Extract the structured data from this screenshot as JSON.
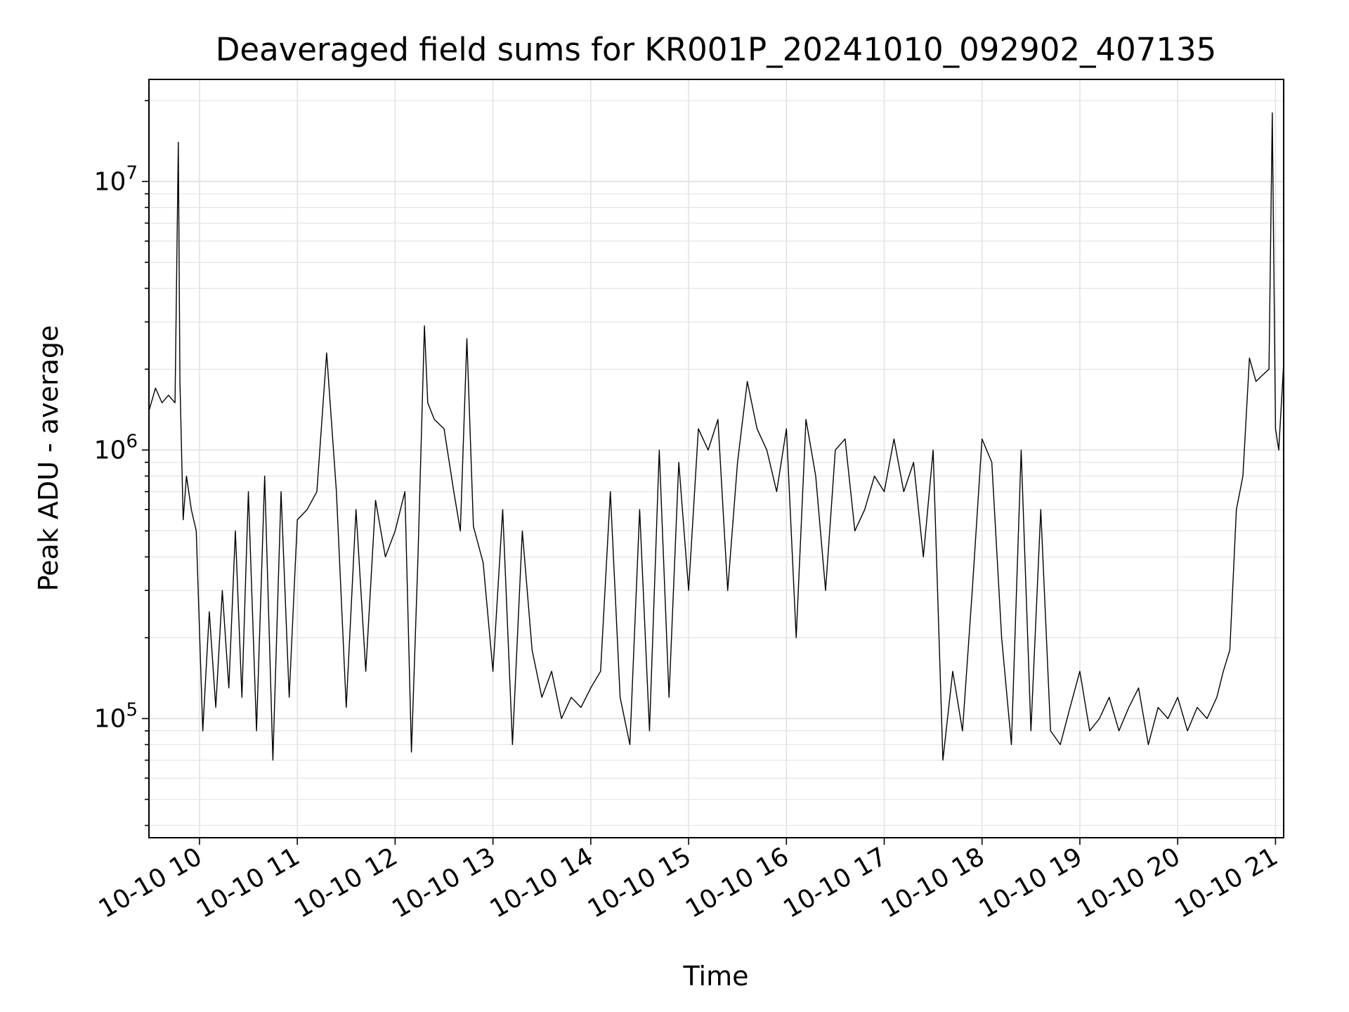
{
  "chart_data": {
    "type": "line",
    "title": "Deaveraged field sums for KR001P_20241010_092902_407135",
    "xlabel": "Time",
    "ylabel": "Peak ADU - average",
    "yscale": "log",
    "ylim": [
      36000,
      24000000
    ],
    "xlim": [
      "2024-10-10 09:29",
      "2024-10-10 21:05"
    ],
    "grid": true,
    "legend": "none",
    "line_color": "#000000",
    "x_ticks": [
      {
        "time": "2024-10-10 10:00",
        "label": "10-10 10"
      },
      {
        "time": "2024-10-10 11:00",
        "label": "10-10 11"
      },
      {
        "time": "2024-10-10 12:00",
        "label": "10-10 12"
      },
      {
        "time": "2024-10-10 13:00",
        "label": "10-10 13"
      },
      {
        "time": "2024-10-10 14:00",
        "label": "10-10 14"
      },
      {
        "time": "2024-10-10 15:00",
        "label": "10-10 15"
      },
      {
        "time": "2024-10-10 16:00",
        "label": "10-10 16"
      },
      {
        "time": "2024-10-10 17:00",
        "label": "10-10 17"
      },
      {
        "time": "2024-10-10 18:00",
        "label": "10-10 18"
      },
      {
        "time": "2024-10-10 19:00",
        "label": "10-10 19"
      },
      {
        "time": "2024-10-10 20:00",
        "label": "10-10 20"
      },
      {
        "time": "2024-10-10 21:00",
        "label": "10-10 21"
      }
    ],
    "y_ticks": [
      {
        "value": 100000,
        "base": "10",
        "exp": "5"
      },
      {
        "value": 1000000,
        "base": "10",
        "exp": "6"
      },
      {
        "value": 10000000,
        "base": "10",
        "exp": "7"
      }
    ],
    "series": [
      {
        "x": [
          "2024-10-10 09:29",
          "2024-10-10 09:33",
          "2024-10-10 09:37",
          "2024-10-10 09:41",
          "2024-10-10 09:45",
          "2024-10-10 09:47",
          "2024-10-10 09:48",
          "2024-10-10 09:50",
          "2024-10-10 09:52",
          "2024-10-10 09:55",
          "2024-10-10 09:58",
          "2024-10-10 10:02",
          "2024-10-10 10:06",
          "2024-10-10 10:10",
          "2024-10-10 10:14",
          "2024-10-10 10:18",
          "2024-10-10 10:22",
          "2024-10-10 10:26",
          "2024-10-10 10:30",
          "2024-10-10 10:35",
          "2024-10-10 10:40",
          "2024-10-10 10:45",
          "2024-10-10 10:50",
          "2024-10-10 10:55",
          "2024-10-10 11:00",
          "2024-10-10 11:06",
          "2024-10-10 11:12",
          "2024-10-10 11:18",
          "2024-10-10 11:24",
          "2024-10-10 11:30",
          "2024-10-10 11:36",
          "2024-10-10 11:42",
          "2024-10-10 11:48",
          "2024-10-10 11:54",
          "2024-10-10 12:00",
          "2024-10-10 12:06",
          "2024-10-10 12:10",
          "2024-10-10 12:14",
          "2024-10-10 12:18",
          "2024-10-10 12:20",
          "2024-10-10 12:24",
          "2024-10-10 12:30",
          "2024-10-10 12:36",
          "2024-10-10 12:40",
          "2024-10-10 12:44",
          "2024-10-10 12:48",
          "2024-10-10 12:54",
          "2024-10-10 13:00",
          "2024-10-10 13:06",
          "2024-10-10 13:12",
          "2024-10-10 13:18",
          "2024-10-10 13:24",
          "2024-10-10 13:30",
          "2024-10-10 13:36",
          "2024-10-10 13:42",
          "2024-10-10 13:48",
          "2024-10-10 13:54",
          "2024-10-10 14:00",
          "2024-10-10 14:06",
          "2024-10-10 14:12",
          "2024-10-10 14:18",
          "2024-10-10 14:24",
          "2024-10-10 14:30",
          "2024-10-10 14:36",
          "2024-10-10 14:42",
          "2024-10-10 14:48",
          "2024-10-10 14:54",
          "2024-10-10 15:00",
          "2024-10-10 15:06",
          "2024-10-10 15:12",
          "2024-10-10 15:18",
          "2024-10-10 15:24",
          "2024-10-10 15:30",
          "2024-10-10 15:36",
          "2024-10-10 15:42",
          "2024-10-10 15:48",
          "2024-10-10 15:54",
          "2024-10-10 16:00",
          "2024-10-10 16:06",
          "2024-10-10 16:12",
          "2024-10-10 16:18",
          "2024-10-10 16:24",
          "2024-10-10 16:30",
          "2024-10-10 16:36",
          "2024-10-10 16:42",
          "2024-10-10 16:48",
          "2024-10-10 16:54",
          "2024-10-10 17:00",
          "2024-10-10 17:06",
          "2024-10-10 17:12",
          "2024-10-10 17:18",
          "2024-10-10 17:24",
          "2024-10-10 17:30",
          "2024-10-10 17:36",
          "2024-10-10 17:42",
          "2024-10-10 17:48",
          "2024-10-10 17:54",
          "2024-10-10 18:00",
          "2024-10-10 18:06",
          "2024-10-10 18:12",
          "2024-10-10 18:18",
          "2024-10-10 18:24",
          "2024-10-10 18:30",
          "2024-10-10 18:36",
          "2024-10-10 18:42",
          "2024-10-10 18:48",
          "2024-10-10 18:54",
          "2024-10-10 19:00",
          "2024-10-10 19:06",
          "2024-10-10 19:12",
          "2024-10-10 19:18",
          "2024-10-10 19:24",
          "2024-10-10 19:30",
          "2024-10-10 19:36",
          "2024-10-10 19:42",
          "2024-10-10 19:48",
          "2024-10-10 19:54",
          "2024-10-10 20:00",
          "2024-10-10 20:06",
          "2024-10-10 20:12",
          "2024-10-10 20:18",
          "2024-10-10 20:24",
          "2024-10-10 20:28",
          "2024-10-10 20:32",
          "2024-10-10 20:36",
          "2024-10-10 20:40",
          "2024-10-10 20:44",
          "2024-10-10 20:48",
          "2024-10-10 20:52",
          "2024-10-10 20:56",
          "2024-10-10 20:58",
          "2024-10-10 21:00",
          "2024-10-10 21:02",
          "2024-10-10 21:05"
        ],
        "y": [
          1400000,
          1700000,
          1500000,
          1600000,
          1500000,
          14000000,
          1800000,
          550000,
          800000,
          600000,
          500000,
          90000,
          250000,
          110000,
          300000,
          130000,
          500000,
          120000,
          700000,
          90000,
          800000,
          70000,
          700000,
          120000,
          550000,
          600000,
          700000,
          2300000,
          700000,
          110000,
          600000,
          150000,
          650000,
          400000,
          500000,
          700000,
          75000,
          400000,
          2900000,
          1500000,
          1300000,
          1200000,
          700000,
          500000,
          2600000,
          520000,
          380000,
          150000,
          600000,
          80000,
          500000,
          180000,
          120000,
          150000,
          100000,
          120000,
          110000,
          130000,
          150000,
          700000,
          120000,
          80000,
          600000,
          90000,
          1000000,
          120000,
          900000,
          300000,
          1200000,
          1000000,
          1300000,
          300000,
          900000,
          1800000,
          1200000,
          1000000,
          700000,
          1200000,
          200000,
          1300000,
          800000,
          300000,
          1000000,
          1100000,
          500000,
          600000,
          800000,
          700000,
          1100000,
          700000,
          900000,
          400000,
          1000000,
          70000,
          150000,
          90000,
          300000,
          1100000,
          900000,
          200000,
          80000,
          1000000,
          90000,
          600000,
          90000,
          80000,
          110000,
          150000,
          90000,
          100000,
          120000,
          90000,
          110000,
          130000,
          80000,
          110000,
          100000,
          120000,
          90000,
          110000,
          100000,
          120000,
          150000,
          180000,
          600000,
          800000,
          2200000,
          1800000,
          1900000,
          2000000,
          18000000,
          1200000,
          1000000,
          2100000
        ]
      }
    ]
  }
}
